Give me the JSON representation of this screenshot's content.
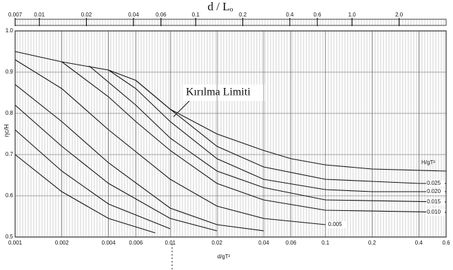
{
  "chart_data": {
    "type": "line",
    "title": "d / Lₒ",
    "xlabel": "d/gT²",
    "ylabel": "ηc/H",
    "legend_title": "H/gT²",
    "annotation": "Kırılma Limiti",
    "log_x": true,
    "grid": true,
    "color": "#111111",
    "xlim": [
      0.001,
      0.6
    ],
    "xticks": [
      0.001,
      0.002,
      0.004,
      0.006,
      0.01,
      0.02,
      0.04,
      0.06,
      0.1,
      0.2,
      0.4,
      0.6
    ],
    "ylim": [
      0.5,
      1
    ],
    "yticks": [
      0.5,
      0.6,
      0.7,
      0.8,
      0.9,
      {
        "value": 1,
        "label": "1.0"
      }
    ],
    "top_xlim": [
      0.007,
      4
    ],
    "top_xticks": [
      0.007,
      0.01,
      0.02,
      0.04,
      0.06,
      0.1,
      0.2,
      0.4,
      0.6,
      {
        "value": 1,
        "label": "1.0"
      },
      {
        "value": 2,
        "label": "2.0"
      }
    ],
    "series": [
      {
        "x": [
          0.001,
          0.002,
          0.004,
          0.006,
          0.01,
          0.02,
          0.04,
          0.06,
          0.1,
          0.2,
          0.6
        ],
        "values": [
          0.95,
          0.925,
          0.905,
          0.88,
          0.81,
          0.75,
          0.71,
          0.69,
          0.675,
          0.665,
          0.66
        ]
      },
      {
        "name": "0.025",
        "x": [
          0.006,
          0.01,
          0.02,
          0.04,
          0.1,
          0.2,
          0.4,
          0.6
        ],
        "values": [
          0.88,
          0.81,
          0.72,
          0.67,
          0.64,
          0.635,
          0.63,
          0.63
        ]
      },
      {
        "name": "0.020",
        "x": [
          0.004,
          0.006,
          0.01,
          0.02,
          0.04,
          0.1,
          0.2,
          0.6
        ],
        "values": [
          0.905,
          0.86,
          0.78,
          0.69,
          0.64,
          0.615,
          0.61,
          0.61
        ]
      },
      {
        "name": "0.015",
        "x": [
          0.003,
          0.006,
          0.01,
          0.02,
          0.04,
          0.1,
          0.6
        ],
        "values": [
          0.915,
          0.82,
          0.74,
          0.66,
          0.62,
          0.59,
          0.585
        ]
      },
      {
        "name": "0.010",
        "x": [
          0.002,
          0.004,
          0.006,
          0.01,
          0.02,
          0.04,
          0.1,
          0.6
        ],
        "values": [
          0.925,
          0.84,
          0.78,
          0.71,
          0.63,
          0.59,
          0.565,
          0.56
        ]
      },
      {
        "name": "0.005",
        "x": [
          0.001,
          0.002,
          0.004,
          0.01,
          0.02,
          0.04,
          0.1
        ],
        "values": [
          0.93,
          0.86,
          0.76,
          0.64,
          0.575,
          0.545,
          0.53
        ]
      },
      {
        "x": [
          0.001,
          0.002,
          0.004,
          0.01,
          0.02,
          0.04
        ],
        "values": [
          0.87,
          0.78,
          0.68,
          0.57,
          0.53,
          0.515
        ]
      },
      {
        "x": [
          0.001,
          0.002,
          0.004,
          0.01,
          0.02
        ],
        "values": [
          0.82,
          0.72,
          0.63,
          0.545,
          0.515
        ]
      },
      {
        "x": [
          0.001,
          0.002,
          0.004,
          0.01
        ],
        "values": [
          0.76,
          0.66,
          0.58,
          0.52
        ]
      },
      {
        "x": [
          0.001,
          0.002,
          0.004,
          0.008
        ],
        "values": [
          0.7,
          0.61,
          0.545,
          0.51
        ]
      }
    ]
  }
}
